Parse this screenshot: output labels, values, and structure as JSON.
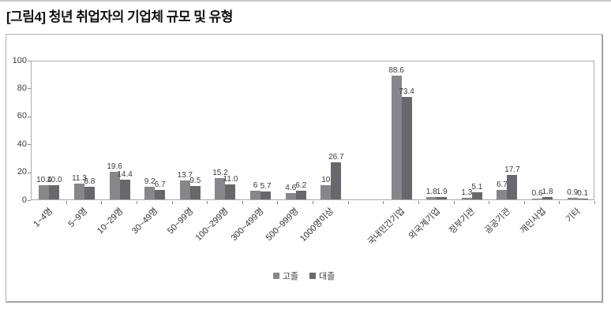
{
  "page": {
    "title": "[그림4] 청년 취업자의 기업체 규모 및 유형"
  },
  "chart_data": {
    "type": "bar",
    "title": "[그림4] 청년 취업자의 기업체 규모 및 유형",
    "categories": [
      "1~4명",
      "5~9명",
      "10~29명",
      "30~49명",
      "50~99명",
      "100~299명",
      "300~499명",
      "500~999명",
      "1000명이상",
      "",
      "국내민간기업",
      "외국계기업",
      "정부기관",
      "공공기관",
      "개인사업",
      "기타"
    ],
    "series": [
      {
        "name": "고졸",
        "values": [
          10.4,
          11.3,
          19.6,
          9.2,
          13.7,
          15.2,
          6,
          4.6,
          10,
          null,
          88.6,
          1.8,
          1.3,
          6.7,
          0.6,
          0.9
        ],
        "labels": [
          "10.4",
          "11.3",
          "19.6",
          "9.2",
          "13.7",
          "15.2",
          "6",
          "4.6",
          "10",
          "",
          "88.6",
          "1.8",
          "1.3",
          "6.7",
          "0.6",
          "0.9"
        ]
      },
      {
        "name": "대졸",
        "values": [
          10.0,
          8.8,
          14.4,
          6.7,
          9.5,
          11.0,
          5.7,
          6.2,
          26.7,
          null,
          73.4,
          1.9,
          5.1,
          17.7,
          1.8,
          0.1
        ],
        "labels": [
          "10.0",
          "8.8",
          "14.4",
          "6.7",
          "9.5",
          "11.0",
          "5.7",
          "6.2",
          "26.7",
          "",
          "73.4",
          "1.9",
          "5.1",
          "17.7",
          "1.8",
          "0.1"
        ]
      }
    ],
    "y_ticks": [
      0,
      20,
      40,
      60,
      80,
      100
    ],
    "ylim": [
      0,
      100
    ],
    "xlabel": "",
    "ylabel": "",
    "grid": false,
    "legend_position": "bottom",
    "colors": {
      "고졸": "#86868b",
      "대졸": "#67676c"
    }
  }
}
